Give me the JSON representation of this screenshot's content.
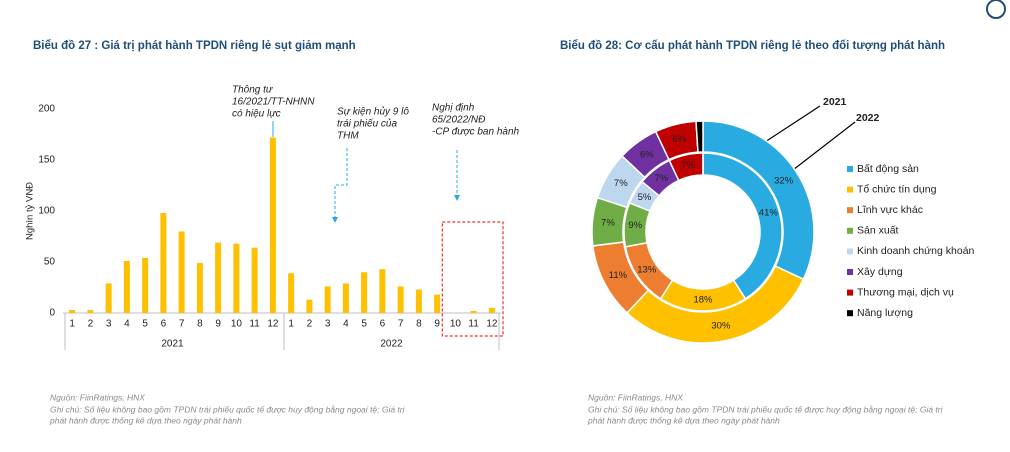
{
  "chart_data": [
    {
      "type": "bar",
      "title": "Biểu đồ 27 : Giá trị phát hành TPDN riêng lẻ sụt giảm mạnh",
      "y_label": "Nghìn tỷ VNĐ",
      "categories": [
        "1",
        "2",
        "3",
        "4",
        "5",
        "6",
        "7",
        "8",
        "9",
        "10",
        "11",
        "12",
        "1",
        "2",
        "3",
        "4",
        "5",
        "6",
        "7",
        "8",
        "9",
        "10",
        "11",
        "12"
      ],
      "x_groups": [
        "2021",
        "2022"
      ],
      "values": [
        3,
        3,
        29,
        51,
        54,
        98,
        80,
        49,
        69,
        68,
        64,
        172,
        39,
        13,
        26,
        29,
        40,
        43,
        26,
        23,
        18,
        0,
        2,
        5
      ],
      "color": "#ffc000",
      "ylim": [
        0,
        200
      ],
      "yticks": [
        0,
        50,
        100,
        150,
        200
      ],
      "annotations": [
        [
          "Thông tư",
          "16/2021/TT-NHNN",
          "có hiệu lực"
        ],
        [
          "Sự kiện hủy 9 lô",
          "trái phiếu của",
          "THM"
        ],
        [
          "Nghị định",
          "65/2022/NĐ",
          "-CP được ban hành"
        ]
      ],
      "source": "Nguồn: FiinRatings, HNX",
      "notes": [
        "Ghi chú: Số liệu không bao gồm TPDN trái phiếu quốc tế được huy động bằng ngoại tệ; Giá trị",
        "phát hành được thống kê dựa theo ngày phát hành"
      ]
    },
    {
      "type": "donut",
      "title": "Biểu đồ 28: Cơ cấu phát hành TPDN riêng lẻ theo đối tượng phát hành",
      "categories": [
        "Bất động sản",
        "Tổ chức tín dụng",
        "Lĩnh vực khác",
        "Sản xuất",
        "Kinh doanh chứng khoán",
        "Xây dựng",
        "Thương mại, dịch vụ",
        "Năng lượng"
      ],
      "colors": [
        "#29abe2",
        "#ffc000",
        "#ed7d31",
        "#70ad47",
        "#bdd7ee",
        "#7030a0",
        "#c00000",
        "#000000"
      ],
      "series": [
        {
          "name": "2021",
          "values": [
            32,
            30,
            11,
            7,
            7,
            6,
            6,
            1
          ],
          "value_labels": [
            "32%",
            "30%",
            "11%",
            "7%",
            "7%",
            "6%",
            "6%",
            null
          ]
        },
        {
          "name": "2022",
          "values": [
            41,
            18,
            13,
            9,
            5,
            7,
            7,
            0
          ],
          "value_labels": [
            "41%",
            "18%",
            "13%",
            "9%",
            "5%",
            "7%",
            "7%",
            null
          ]
        }
      ],
      "source": "Nguồn: FiinRatings, HNX",
      "notes": [
        "Ghi chú: Số liệu không bao gồm TPDN trái phiếu quốc tế được huy động bằng ngoại tệ; Giá trị",
        "phát hành được thống kê dựa theo ngày phát hành"
      ]
    }
  ]
}
